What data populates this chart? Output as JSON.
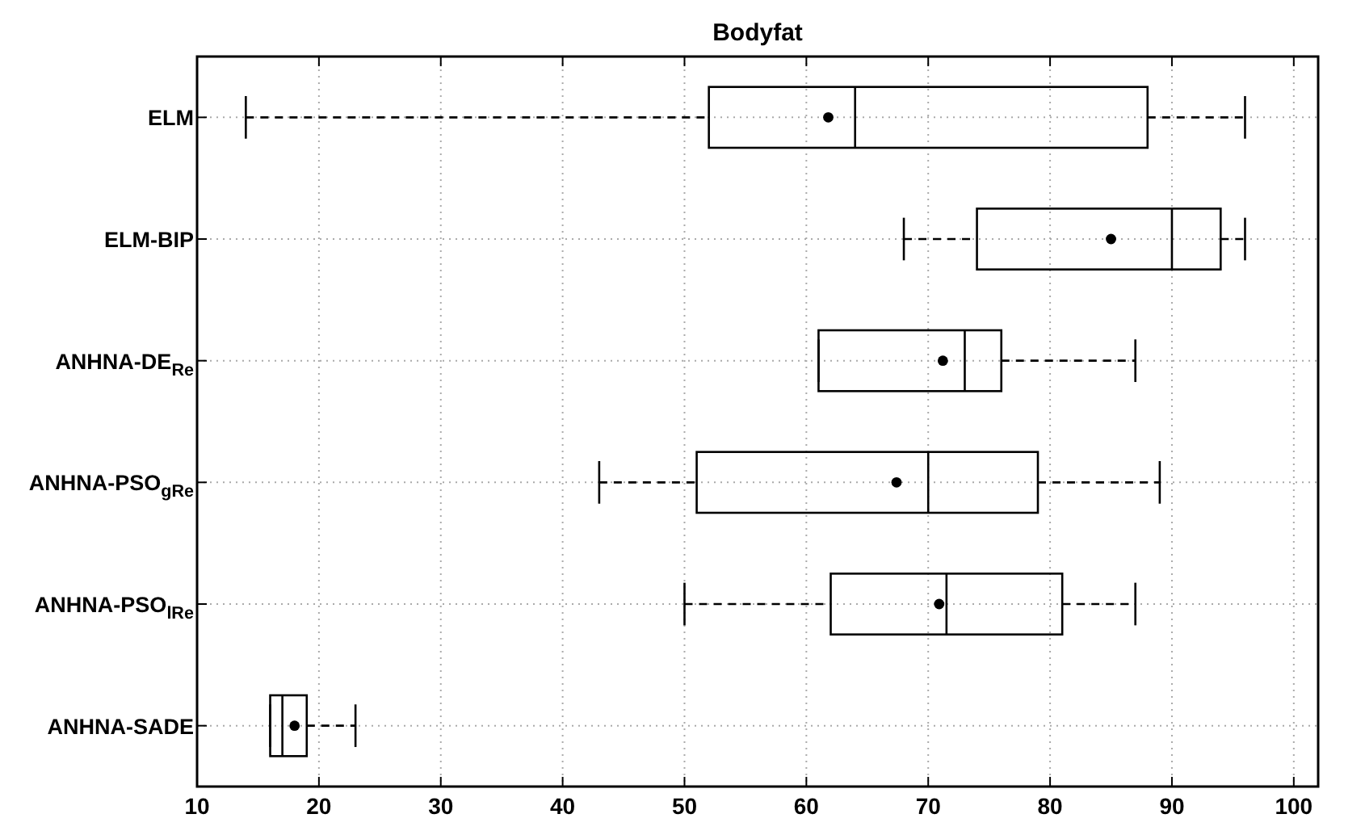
{
  "chart_data": {
    "type": "box",
    "orientation": "horizontal",
    "title": "Bodyfat",
    "categories": [
      "ELM",
      "ELM-BIP",
      "ANHNA-DE$_{Re}$",
      "ANHNA-PSO$_{gRe}$",
      "ANHNA-PSO$_{lRe}$",
      "ANHNA-SADE"
    ],
    "boxes": [
      {
        "low": 14,
        "q1": 52,
        "median": 64,
        "q3": 88,
        "high": 96,
        "mean": 61.8
      },
      {
        "low": 68,
        "q1": 74,
        "median": 90,
        "q3": 94,
        "high": 96,
        "mean": 85
      },
      {
        "low": 61,
        "q1": 61,
        "median": 73,
        "q3": 76,
        "high": 87,
        "mean": 71.2
      },
      {
        "low": 43,
        "q1": 51,
        "median": 70,
        "q3": 79,
        "high": 89,
        "mean": 67.4
      },
      {
        "low": 50,
        "q1": 62,
        "median": 71.5,
        "q3": 81,
        "high": 87,
        "mean": 70.9
      },
      {
        "low": 16,
        "q1": 16,
        "median": 17,
        "q3": 19,
        "high": 23,
        "mean": 18
      }
    ],
    "xlim": [
      10,
      102
    ],
    "xticks": [
      10,
      20,
      30,
      40,
      50,
      60,
      70,
      80,
      90,
      100
    ],
    "grid": true,
    "line_style": "dashed"
  }
}
